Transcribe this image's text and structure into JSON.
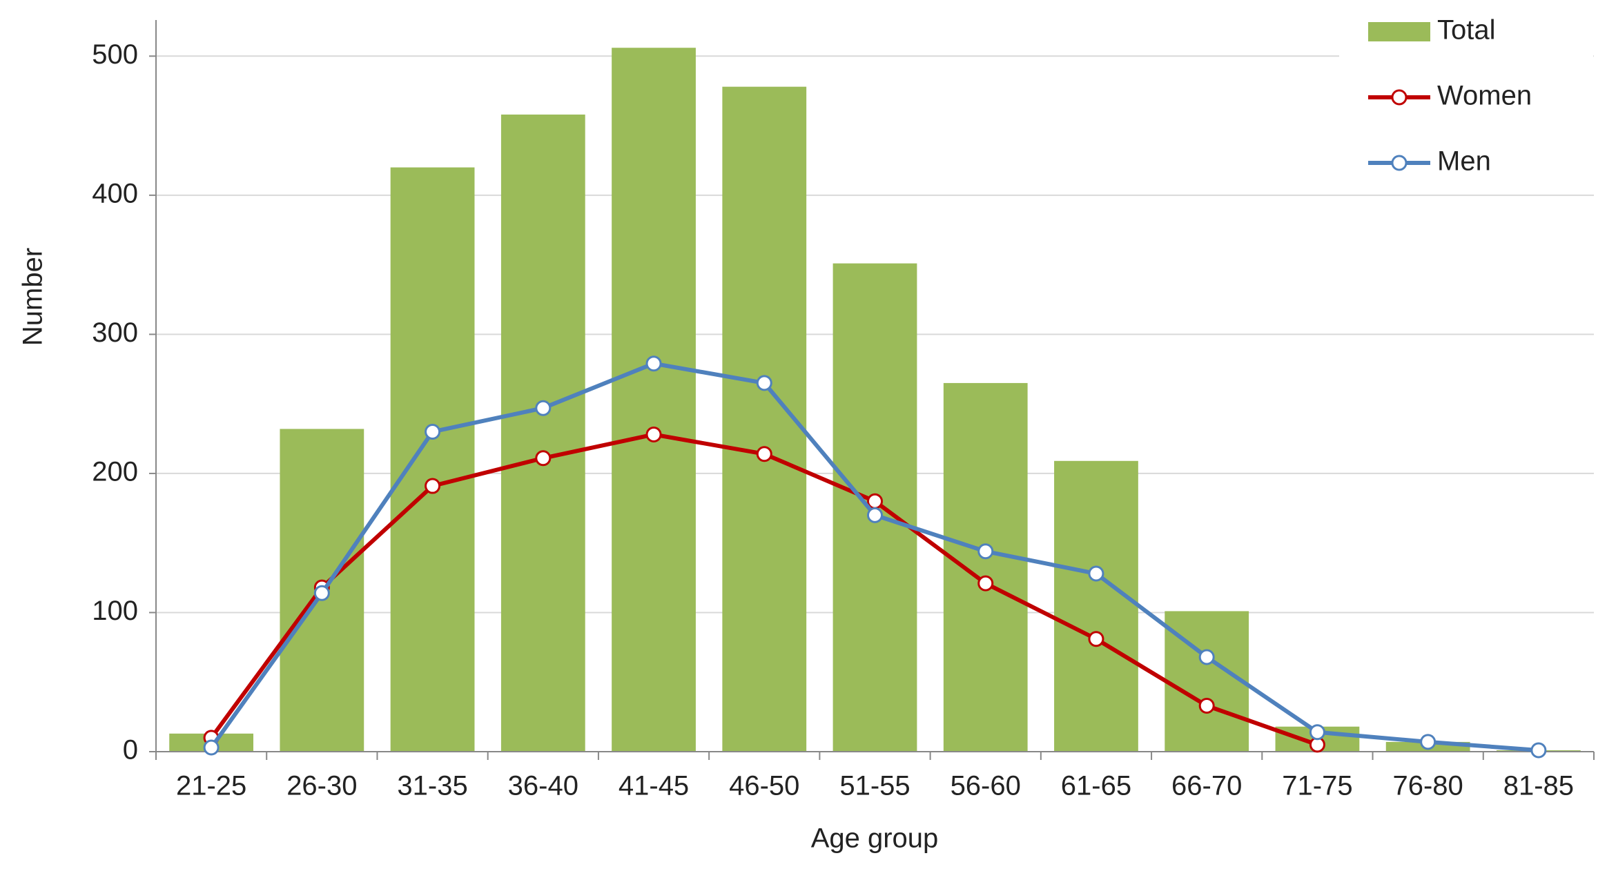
{
  "chart_data": {
    "type": "bar_line",
    "x_label": "Age group",
    "y_label": "Number",
    "categories": [
      "21-25",
      "26-30",
      "31-35",
      "36-40",
      "41-45",
      "46-50",
      "51-55",
      "56-60",
      "61-65",
      "66-70",
      "71-75",
      "76-80",
      "81-85"
    ],
    "series": [
      {
        "name": "Total",
        "type": "bar",
        "color": "#9bbb59",
        "values": [
          13,
          232,
          420,
          458,
          506,
          478,
          351,
          265,
          209,
          101,
          18,
          7,
          1
        ]
      },
      {
        "name": "Women",
        "type": "line",
        "color": "#c00000",
        "values": [
          10,
          118,
          191,
          211,
          228,
          214,
          180,
          121,
          81,
          33,
          5,
          null,
          null
        ]
      },
      {
        "name": "Men",
        "type": "line",
        "color": "#4f81bd",
        "values": [
          3,
          114,
          230,
          247,
          279,
          265,
          170,
          144,
          128,
          68,
          14,
          7,
          1
        ]
      }
    ],
    "ylim": [
      0,
      520
    ],
    "yticks": [
      0,
      100,
      200,
      300,
      400,
      500
    ],
    "grid": true,
    "legend": "top-right"
  }
}
